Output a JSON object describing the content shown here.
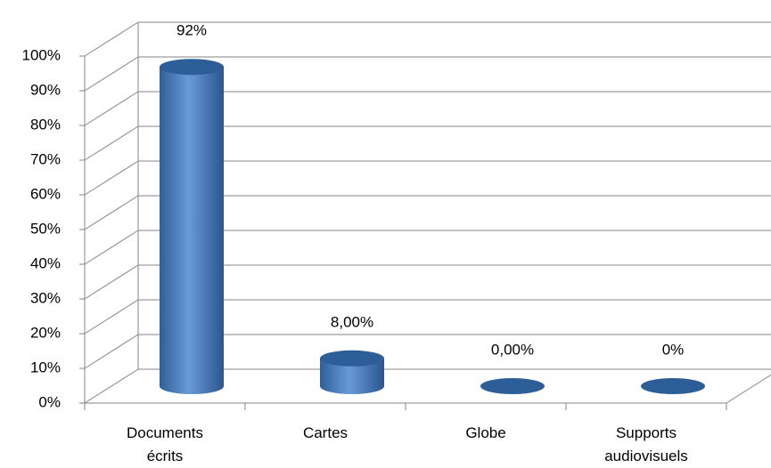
{
  "chart_data": {
    "type": "bar3d",
    "categories": [
      "Documents écrits",
      "Cartes",
      "Globe",
      "Supports audiovisuels"
    ],
    "values": [
      92,
      8,
      0,
      0
    ],
    "value_labels": [
      "92%",
      "8,00%",
      "0,00%",
      "0%"
    ],
    "color": "#4f81bd",
    "ylim": [
      0,
      100
    ],
    "yticks": [
      {
        "value": 0,
        "label": "0%"
      },
      {
        "value": 10,
        "label": "10%"
      },
      {
        "value": 20,
        "label": "20%"
      },
      {
        "value": 30,
        "label": "30%"
      },
      {
        "value": 40,
        "label": "40%"
      },
      {
        "value": 50,
        "label": "50%"
      },
      {
        "value": 60,
        "label": "60%"
      },
      {
        "value": 70,
        "label": "70%"
      },
      {
        "value": 80,
        "label": "80%"
      },
      {
        "value": 90,
        "label": "90%"
      },
      {
        "value": 100,
        "label": "100%"
      }
    ],
    "grid": true
  }
}
